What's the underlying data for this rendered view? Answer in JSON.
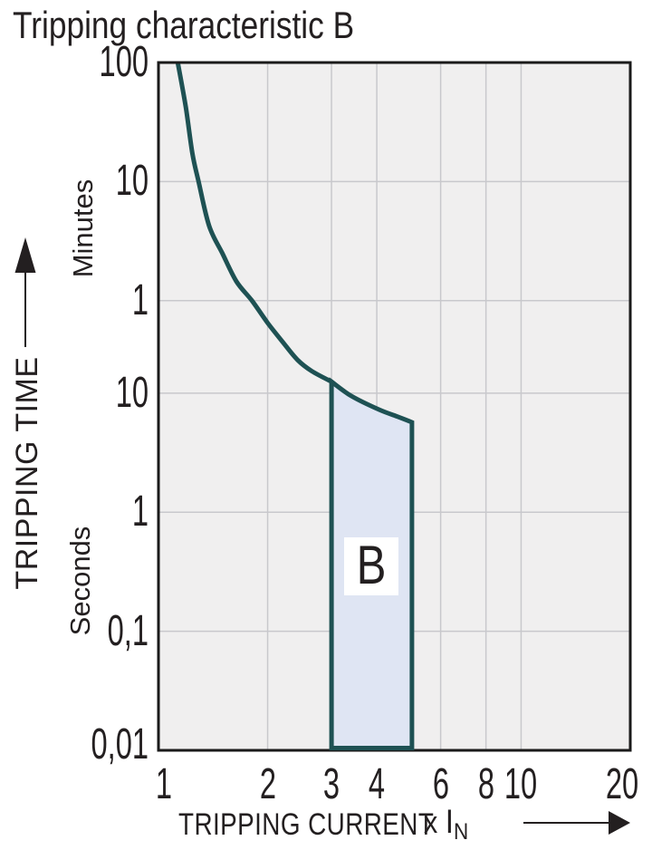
{
  "title": "Tripping characteristic B",
  "colors": {
    "page_bg": "#ffffff",
    "plot_bg": "#f0efef",
    "grid": "#c8c8cc",
    "frame": "#1a1a1a",
    "curve": "#1e5153",
    "band_fill": "#dfe5f3",
    "text": "#231f20"
  },
  "chart_data": {
    "type": "line",
    "title": "Tripping characteristic B",
    "x_axis": {
      "label": "TRIPPING CURRENT",
      "multiplier": "x",
      "multiplier_symbol": "I",
      "multiplier_sub": "N",
      "scale": "log",
      "min": 1,
      "max": 20,
      "ticks": [
        {
          "label": "1",
          "value": 1
        },
        {
          "label": "2",
          "value": 2
        },
        {
          "label": "3",
          "value": 3
        },
        {
          "label": "4",
          "value": 4
        },
        {
          "label": "6",
          "value": 6
        },
        {
          "label": "8",
          "value": 8
        },
        {
          "label": "10",
          "value": 10
        },
        {
          "label": "20",
          "value": 20
        }
      ]
    },
    "y_axis": {
      "label": "TRIPPING TIME",
      "scale": "log",
      "min_seconds": 0.01,
      "max_seconds": 6000,
      "unit_upper": "Minutes",
      "unit_lower": "Seconds",
      "ticks": [
        {
          "label": "100",
          "seconds": 6000,
          "unit": "minutes"
        },
        {
          "label": "10",
          "seconds": 600,
          "unit": "minutes"
        },
        {
          "label": "1",
          "seconds": 60,
          "unit": "minutes"
        },
        {
          "label": "10",
          "seconds": 10,
          "unit": "seconds"
        },
        {
          "label": "1",
          "seconds": 1,
          "unit": "seconds"
        },
        {
          "label": "0,1",
          "seconds": 0.1,
          "unit": "seconds"
        },
        {
          "label": "0,01",
          "seconds": 0.01,
          "unit": "seconds"
        }
      ]
    },
    "gridlines": {
      "x": [
        2,
        3,
        4,
        6,
        8,
        10
      ],
      "y_seconds": [
        600,
        60,
        10,
        1,
        0.1
      ]
    },
    "series": [
      {
        "name": "thermal-trip-upper-limit-curve",
        "points_x_In_y_seconds": [
          [
            1.13,
            6000
          ],
          [
            1.19,
            2500
          ],
          [
            1.24,
            1040
          ],
          [
            1.29,
            600
          ],
          [
            1.38,
            254
          ],
          [
            1.5,
            150
          ],
          [
            1.64,
            87
          ],
          [
            1.81,
            60
          ],
          [
            2.0,
            39
          ],
          [
            2.2,
            27
          ],
          [
            2.42,
            19
          ],
          [
            2.65,
            15.3
          ],
          [
            3.0,
            12.5
          ]
        ]
      }
    ],
    "band": {
      "label": "B",
      "x_from": 3,
      "x_to": 5,
      "top_curve_x_In_y_seconds": [
        [
          3.0,
          12.5
        ],
        [
          3.4,
          9.5
        ],
        [
          4.05,
          7.3
        ],
        [
          4.6,
          6.3
        ],
        [
          5.0,
          5.7
        ]
      ],
      "bottom_seconds": 0.01
    }
  }
}
